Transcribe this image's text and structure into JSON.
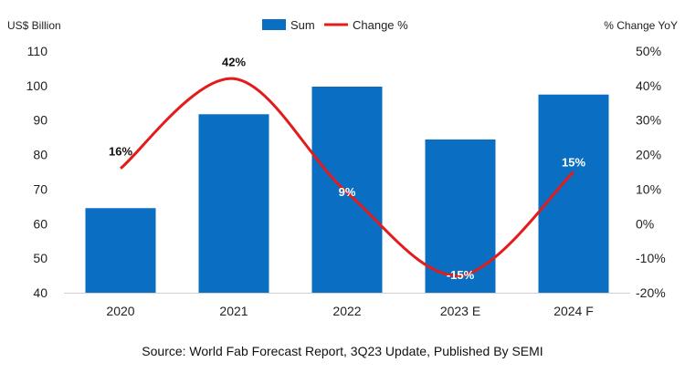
{
  "chart_data": {
    "type": "bar",
    "categories": [
      "2020",
      "2021",
      "2022",
      "2023 E",
      "2024 F"
    ],
    "series": [
      {
        "name": "Sum",
        "type": "bar",
        "axis": "left",
        "values": [
          64.5,
          91.7,
          99.7,
          84.4,
          97.4
        ]
      },
      {
        "name": "Change %",
        "type": "line",
        "axis": "right",
        "values": [
          16,
          42,
          9,
          -15,
          15
        ],
        "labels": [
          "16%",
          "42%",
          "9%",
          "-15%",
          "15%"
        ]
      }
    ],
    "y_left": {
      "label": "US$ Billion",
      "ylim": [
        40,
        110
      ],
      "ticks": [
        40,
        50,
        60,
        70,
        80,
        90,
        100,
        110
      ],
      "tick_labels": [
        "40",
        "50",
        "60",
        "70",
        "80",
        "90",
        "100",
        "110"
      ]
    },
    "y_right": {
      "label": "% Change YoY",
      "ylim": [
        -20,
        50
      ],
      "ticks": [
        -20,
        -10,
        0,
        10,
        20,
        30,
        40,
        50
      ],
      "tick_labels": [
        "-20%",
        "-10%",
        "0%",
        "10%",
        "20%",
        "30%",
        "40%",
        "50%"
      ]
    },
    "legend": {
      "position": "top-center"
    },
    "grid": false,
    "colors": {
      "bar": "#0a6fc2",
      "line": "#e31b1b"
    },
    "source": "Source: World Fab Forecast Report, 3Q23 Update, Published By SEMI"
  }
}
